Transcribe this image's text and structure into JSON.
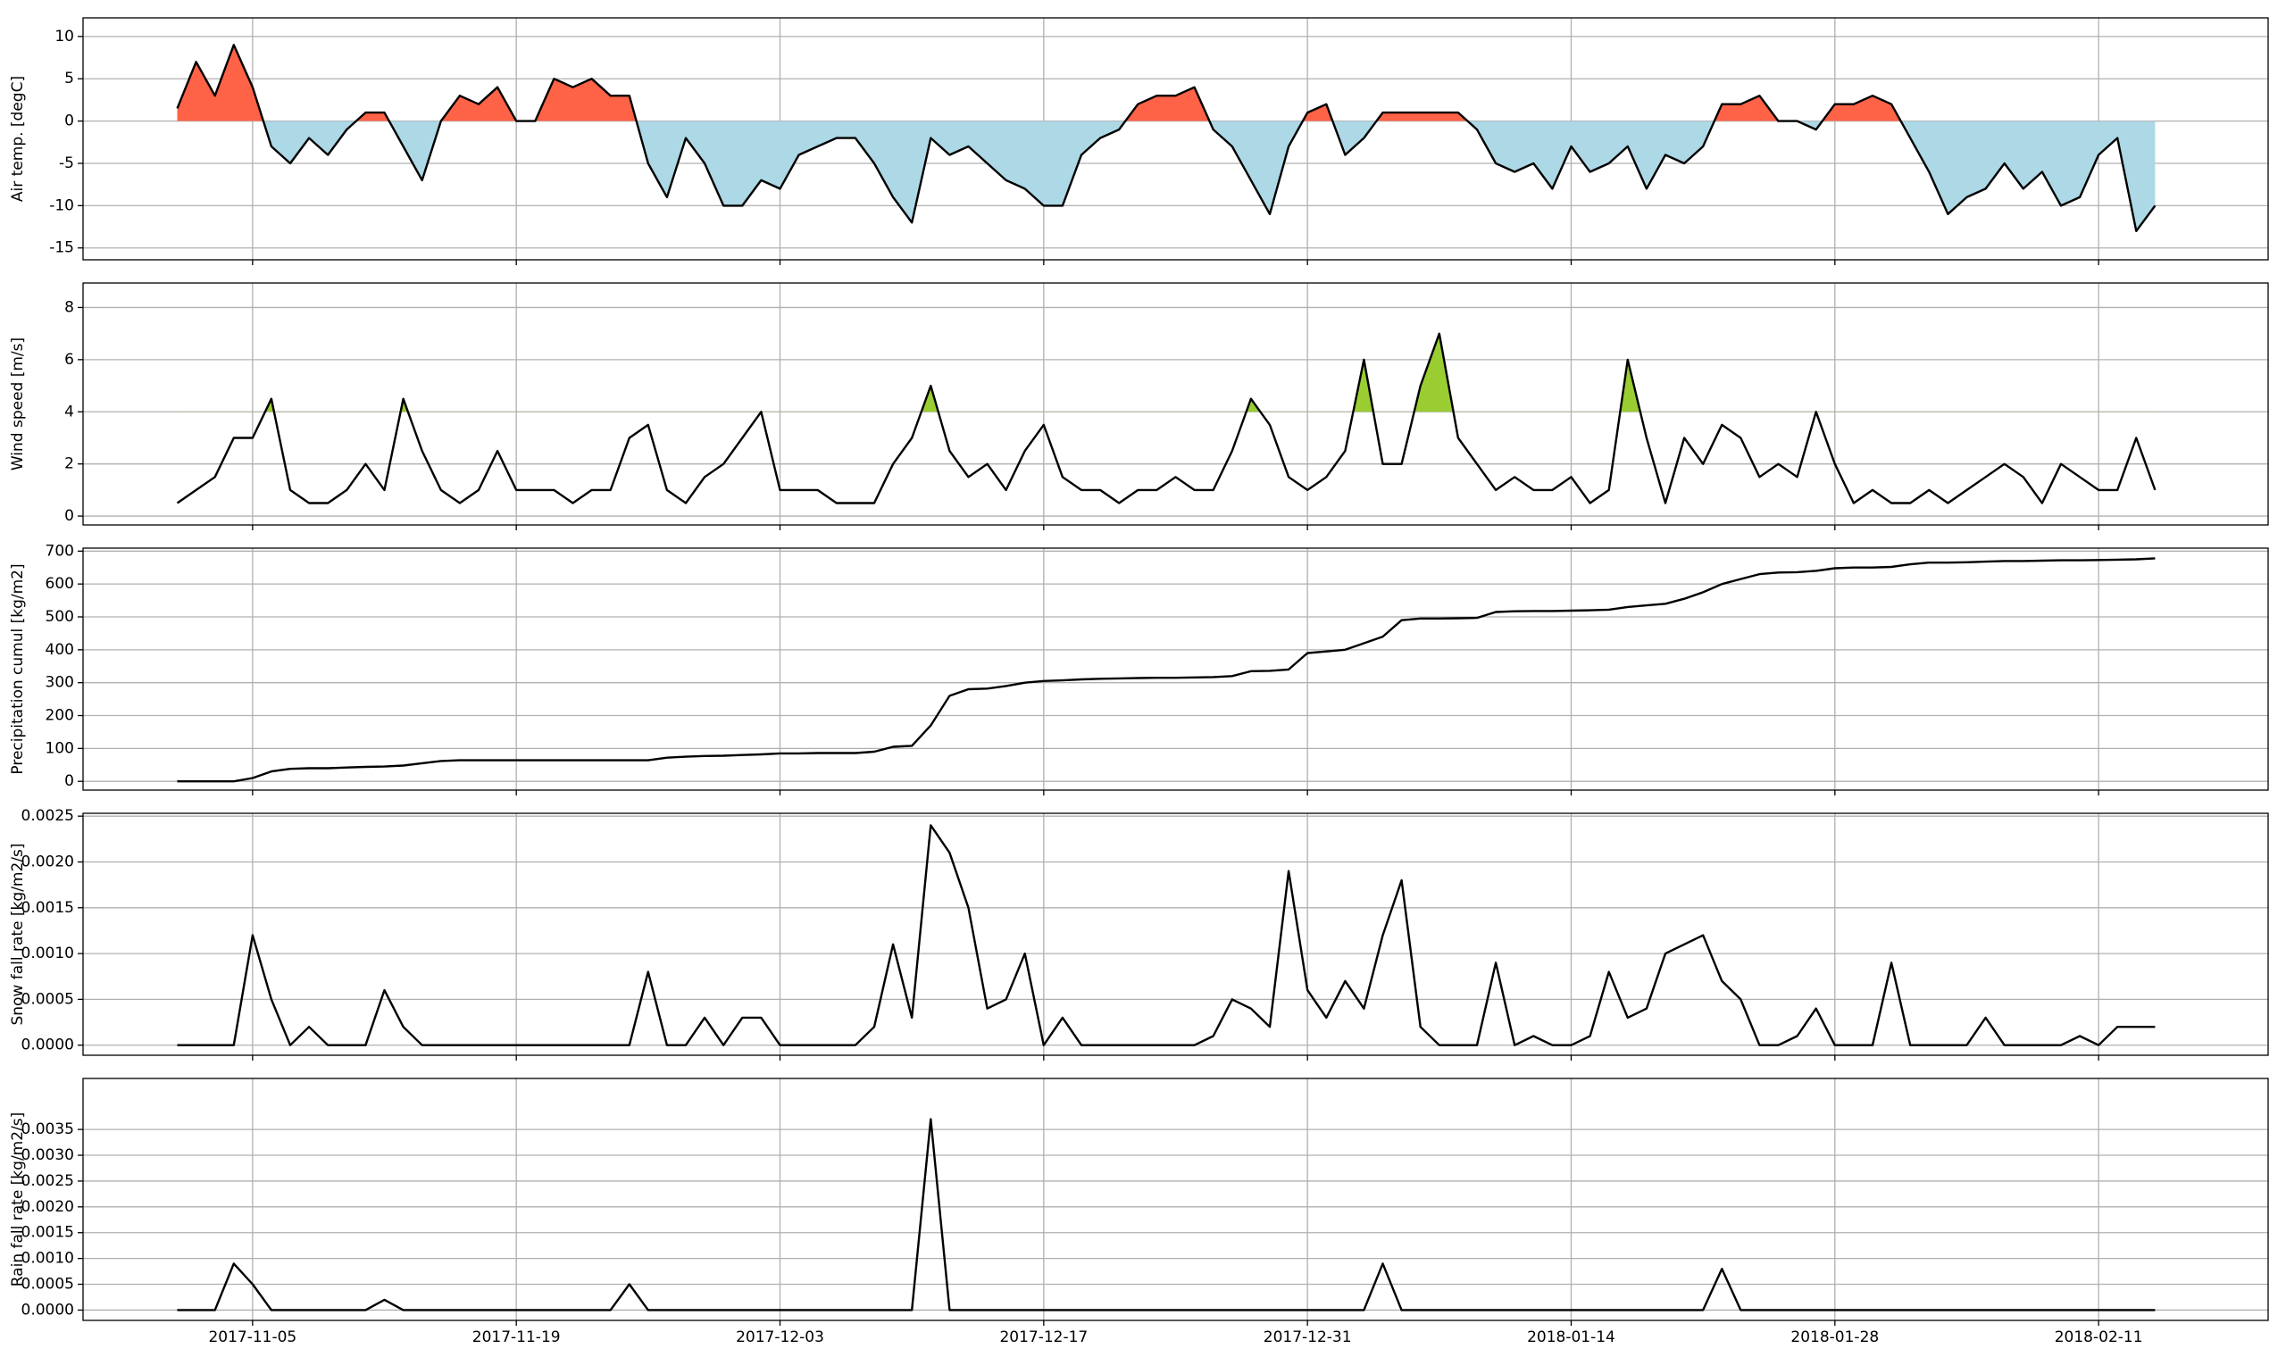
{
  "chart_data": {
    "xlim": [
      "2017-10-27",
      "2018-02-20"
    ],
    "xticks": [
      "2017-11-05",
      "2017-11-19",
      "2017-12-03",
      "2017-12-17",
      "2017-12-31",
      "2018-01-14",
      "2018-01-28",
      "2018-02-11"
    ],
    "grid": true,
    "x": [
      "2017-11-01",
      "2017-11-02",
      "2017-11-03",
      "2017-11-04",
      "2017-11-05",
      "2017-11-06",
      "2017-11-07",
      "2017-11-08",
      "2017-11-09",
      "2017-11-10",
      "2017-11-11",
      "2017-11-12",
      "2017-11-13",
      "2017-11-14",
      "2017-11-15",
      "2017-11-16",
      "2017-11-17",
      "2017-11-18",
      "2017-11-19",
      "2017-11-20",
      "2017-11-21",
      "2017-11-22",
      "2017-11-23",
      "2017-11-24",
      "2017-11-25",
      "2017-11-26",
      "2017-11-27",
      "2017-11-28",
      "2017-11-29",
      "2017-11-30",
      "2017-12-01",
      "2017-12-02",
      "2017-12-03",
      "2017-12-04",
      "2017-12-05",
      "2017-12-06",
      "2017-12-07",
      "2017-12-08",
      "2017-12-09",
      "2017-12-10",
      "2017-12-11",
      "2017-12-12",
      "2017-12-13",
      "2017-12-14",
      "2017-12-15",
      "2017-12-16",
      "2017-12-17",
      "2017-12-18",
      "2017-12-19",
      "2017-12-20",
      "2017-12-21",
      "2017-12-22",
      "2017-12-23",
      "2017-12-24",
      "2017-12-25",
      "2017-12-26",
      "2017-12-27",
      "2017-12-28",
      "2017-12-29",
      "2017-12-30",
      "2017-12-31",
      "2018-01-01",
      "2018-01-02",
      "2018-01-03",
      "2018-01-04",
      "2018-01-05",
      "2018-01-06",
      "2018-01-07",
      "2018-01-08",
      "2018-01-09",
      "2018-01-10",
      "2018-01-11",
      "2018-01-12",
      "2018-01-13",
      "2018-01-14",
      "2018-01-15",
      "2018-01-16",
      "2018-01-17",
      "2018-01-18",
      "2018-01-19",
      "2018-01-20",
      "2018-01-21",
      "2018-01-22",
      "2018-01-23",
      "2018-01-24",
      "2018-01-25",
      "2018-01-26",
      "2018-01-27",
      "2018-01-28",
      "2018-01-29",
      "2018-01-30",
      "2018-01-31",
      "2018-02-01",
      "2018-02-02",
      "2018-02-03",
      "2018-02-04",
      "2018-02-05",
      "2018-02-06",
      "2018-02-07",
      "2018-02-08",
      "2018-02-09",
      "2018-02-10",
      "2018-02-11",
      "2018-02-12",
      "2018-02-13",
      "2018-02-14"
    ],
    "panels": [
      {
        "type": "line",
        "ylabel": "Air temp. [degC]",
        "ylim": [
          -16.4,
          12.2
        ],
        "yticks": [
          -15,
          -10,
          -5,
          0,
          5,
          10
        ],
        "color": "#000000",
        "threshold": 0,
        "above_color": "#ff6347",
        "below_color": "#add8e6",
        "values": [
          1.5,
          7,
          3,
          9,
          4,
          -3,
          -5,
          -2,
          -4,
          -1,
          1,
          1,
          -3,
          -7,
          0,
          3,
          2,
          4,
          0,
          0,
          5,
          4,
          5,
          3,
          3,
          -5,
          -9,
          -2,
          -5,
          -10,
          -10,
          -7,
          -8,
          -4,
          -3,
          -2,
          -2,
          -5,
          -9,
          -12,
          -2,
          -4,
          -3,
          -5,
          -7,
          -8,
          -10,
          -10,
          -4,
          -2,
          -1,
          2,
          3,
          3,
          4,
          -1,
          -3,
          -7,
          -11,
          -3,
          1,
          2,
          -4,
          -2,
          1,
          1,
          1,
          1,
          1,
          -1,
          -5,
          -6,
          -5,
          -8,
          -3,
          -6,
          -5,
          -3,
          -8,
          -4,
          -5,
          -3,
          2,
          2,
          3,
          0,
          0,
          -1,
          2,
          2,
          3,
          2,
          -2,
          -6,
          -11,
          -9,
          -8,
          -5,
          -8,
          -6,
          -10,
          -9,
          -4,
          -2,
          -13,
          -10
        ]
      },
      {
        "type": "line",
        "ylabel": "Wind speed [m/s]",
        "ylim": [
          -0.34,
          8.94
        ],
        "yticks": [
          0,
          2,
          4,
          6,
          8
        ],
        "color": "#000000",
        "threshold": 4,
        "above_color": "#9acd32",
        "values": [
          0.5,
          1,
          1.5,
          3,
          3,
          4.5,
          1,
          0.5,
          0.5,
          1,
          2,
          1,
          4.5,
          2.5,
          1,
          0.5,
          1,
          2.5,
          1,
          1,
          1,
          0.5,
          1,
          1,
          3,
          3.5,
          1,
          0.5,
          1.5,
          2,
          3,
          4,
          1,
          1,
          1,
          0.5,
          0.5,
          0.5,
          2,
          3,
          5,
          2.5,
          1.5,
          2,
          1,
          2.5,
          3.5,
          1.5,
          1,
          1,
          0.5,
          1,
          1,
          1.5,
          1,
          1,
          2.5,
          4.5,
          3.5,
          1.5,
          1,
          1.5,
          2.5,
          6,
          2,
          2,
          5,
          7,
          3,
          2,
          1,
          1.5,
          1,
          1,
          1.5,
          0.5,
          1,
          6,
          3,
          0.5,
          3,
          2,
          3.5,
          3,
          1.5,
          2,
          1.5,
          4,
          2,
          0.5,
          1,
          0.5,
          0.5,
          1,
          0.5,
          1,
          1.5,
          2,
          1.5,
          0.5,
          2,
          1.5,
          1,
          1,
          3,
          1
        ]
      },
      {
        "type": "line",
        "ylabel": "Precipitation cumul [kg/m2]",
        "ylim": [
          -26.6,
          709
        ],
        "yticks": [
          0,
          100,
          200,
          300,
          400,
          500,
          600,
          700
        ],
        "color": "#000000",
        "values": [
          0,
          0,
          0,
          0,
          10,
          30,
          38,
          40,
          40,
          42,
          44,
          45,
          48,
          55,
          62,
          64,
          64,
          64,
          64,
          64,
          64,
          64,
          64,
          64,
          64,
          64,
          72,
          75,
          77,
          78,
          80,
          82,
          85,
          85,
          86,
          86,
          86,
          90,
          105,
          108,
          170,
          260,
          280,
          282,
          290,
          300,
          305,
          307,
          310,
          312,
          313,
          314,
          315,
          315,
          316,
          317,
          320,
          335,
          336,
          340,
          390,
          395,
          400,
          420,
          440,
          490,
          495,
          495,
          496,
          497,
          515,
          517,
          518,
          518,
          519,
          520,
          522,
          530,
          535,
          540,
          555,
          575,
          600,
          615,
          630,
          635,
          636,
          640,
          648,
          650,
          650,
          652,
          660,
          665,
          665,
          666,
          668,
          670,
          670,
          671,
          672,
          672,
          673,
          674,
          675,
          678
        ]
      },
      {
        "type": "line",
        "ylabel": "Snow fall rate [kg/m2/s]",
        "ylim": [
          -0.00011,
          0.002531
        ],
        "yticks": [
          {
            "value": 0,
            "label": "0.0000"
          },
          {
            "value": 0.0005,
            "label": "0.0005"
          },
          {
            "value": 0.001,
            "label": "0.0010"
          },
          {
            "value": 0.0015,
            "label": "0.0015"
          },
          {
            "value": 0.002,
            "label": "0.0020"
          },
          {
            "value": 0.0025,
            "label": "0.0025"
          }
        ],
        "color": "#000000",
        "values": [
          0,
          0,
          0,
          0,
          0.0012,
          0.0005,
          0,
          0.0002,
          0,
          0,
          0,
          0.0006,
          0.0002,
          0,
          0,
          0,
          0,
          0,
          0,
          0,
          0,
          0,
          0,
          0,
          0,
          0.0008,
          0,
          0,
          0.0003,
          0,
          0.0003,
          0.0003,
          0,
          0,
          0,
          0,
          0,
          0.0002,
          0.0011,
          0.0003,
          0.0024,
          0.0021,
          0.0015,
          0.0004,
          0.0005,
          0.001,
          0,
          0.0003,
          0,
          0,
          0,
          0,
          0,
          0,
          0,
          0.0001,
          0.0005,
          0.0004,
          0.0002,
          0.0019,
          0.0006,
          0.0003,
          0.0007,
          0.0004,
          0.0012,
          0.0018,
          0.0002,
          0,
          0,
          0,
          0.0009,
          0,
          0.0001,
          0,
          0,
          0.0001,
          0.0008,
          0.0003,
          0.0004,
          0.001,
          0.0011,
          0.0012,
          0.0007,
          0.0005,
          0,
          0,
          0.0001,
          0.0004,
          0,
          0,
          0,
          0.0009,
          0,
          0,
          0,
          0,
          0.0003,
          0,
          0,
          0,
          0,
          0.0001,
          0,
          0.0002,
          0.0002,
          0.0002
        ]
      },
      {
        "type": "line",
        "ylabel": "Rain fall rate [kg/m2/s]",
        "ylim": [
          -0.0002,
          0.004488
        ],
        "yticks": [
          {
            "value": 0,
            "label": "0.0000"
          },
          {
            "value": 0.0005,
            "label": "0.0005"
          },
          {
            "value": 0.001,
            "label": "0.0010"
          },
          {
            "value": 0.0015,
            "label": "0.0015"
          },
          {
            "value": 0.002,
            "label": "0.0020"
          },
          {
            "value": 0.0025,
            "label": "0.0025"
          },
          {
            "value": 0.003,
            "label": "0.0030"
          },
          {
            "value": 0.0035,
            "label": "0.0035"
          }
        ],
        "color": "#000000",
        "values": [
          0,
          0,
          0,
          0.0009,
          0.0005,
          0,
          0,
          0,
          0,
          0,
          0,
          0.0002,
          0,
          0,
          0,
          0,
          0,
          0,
          0,
          0,
          0,
          0,
          0,
          0,
          0.0005,
          0,
          0,
          0,
          0,
          0,
          0,
          0,
          0,
          0,
          0,
          0,
          0,
          0,
          0,
          0,
          0.0037,
          0,
          0,
          0,
          0,
          0,
          0,
          0,
          0,
          0,
          0,
          0,
          0,
          0,
          0,
          0,
          0,
          0,
          0,
          0,
          0,
          0,
          0,
          0,
          0.0009,
          0,
          0,
          0,
          0,
          0,
          0,
          0,
          0,
          0,
          0,
          0,
          0,
          0,
          0,
          0,
          0,
          0,
          0.0008,
          0,
          0,
          0,
          0,
          0,
          0,
          0,
          0,
          0,
          0,
          0,
          0,
          0,
          0,
          0,
          0,
          0,
          0,
          0,
          0,
          0,
          0,
          0
        ]
      }
    ]
  }
}
